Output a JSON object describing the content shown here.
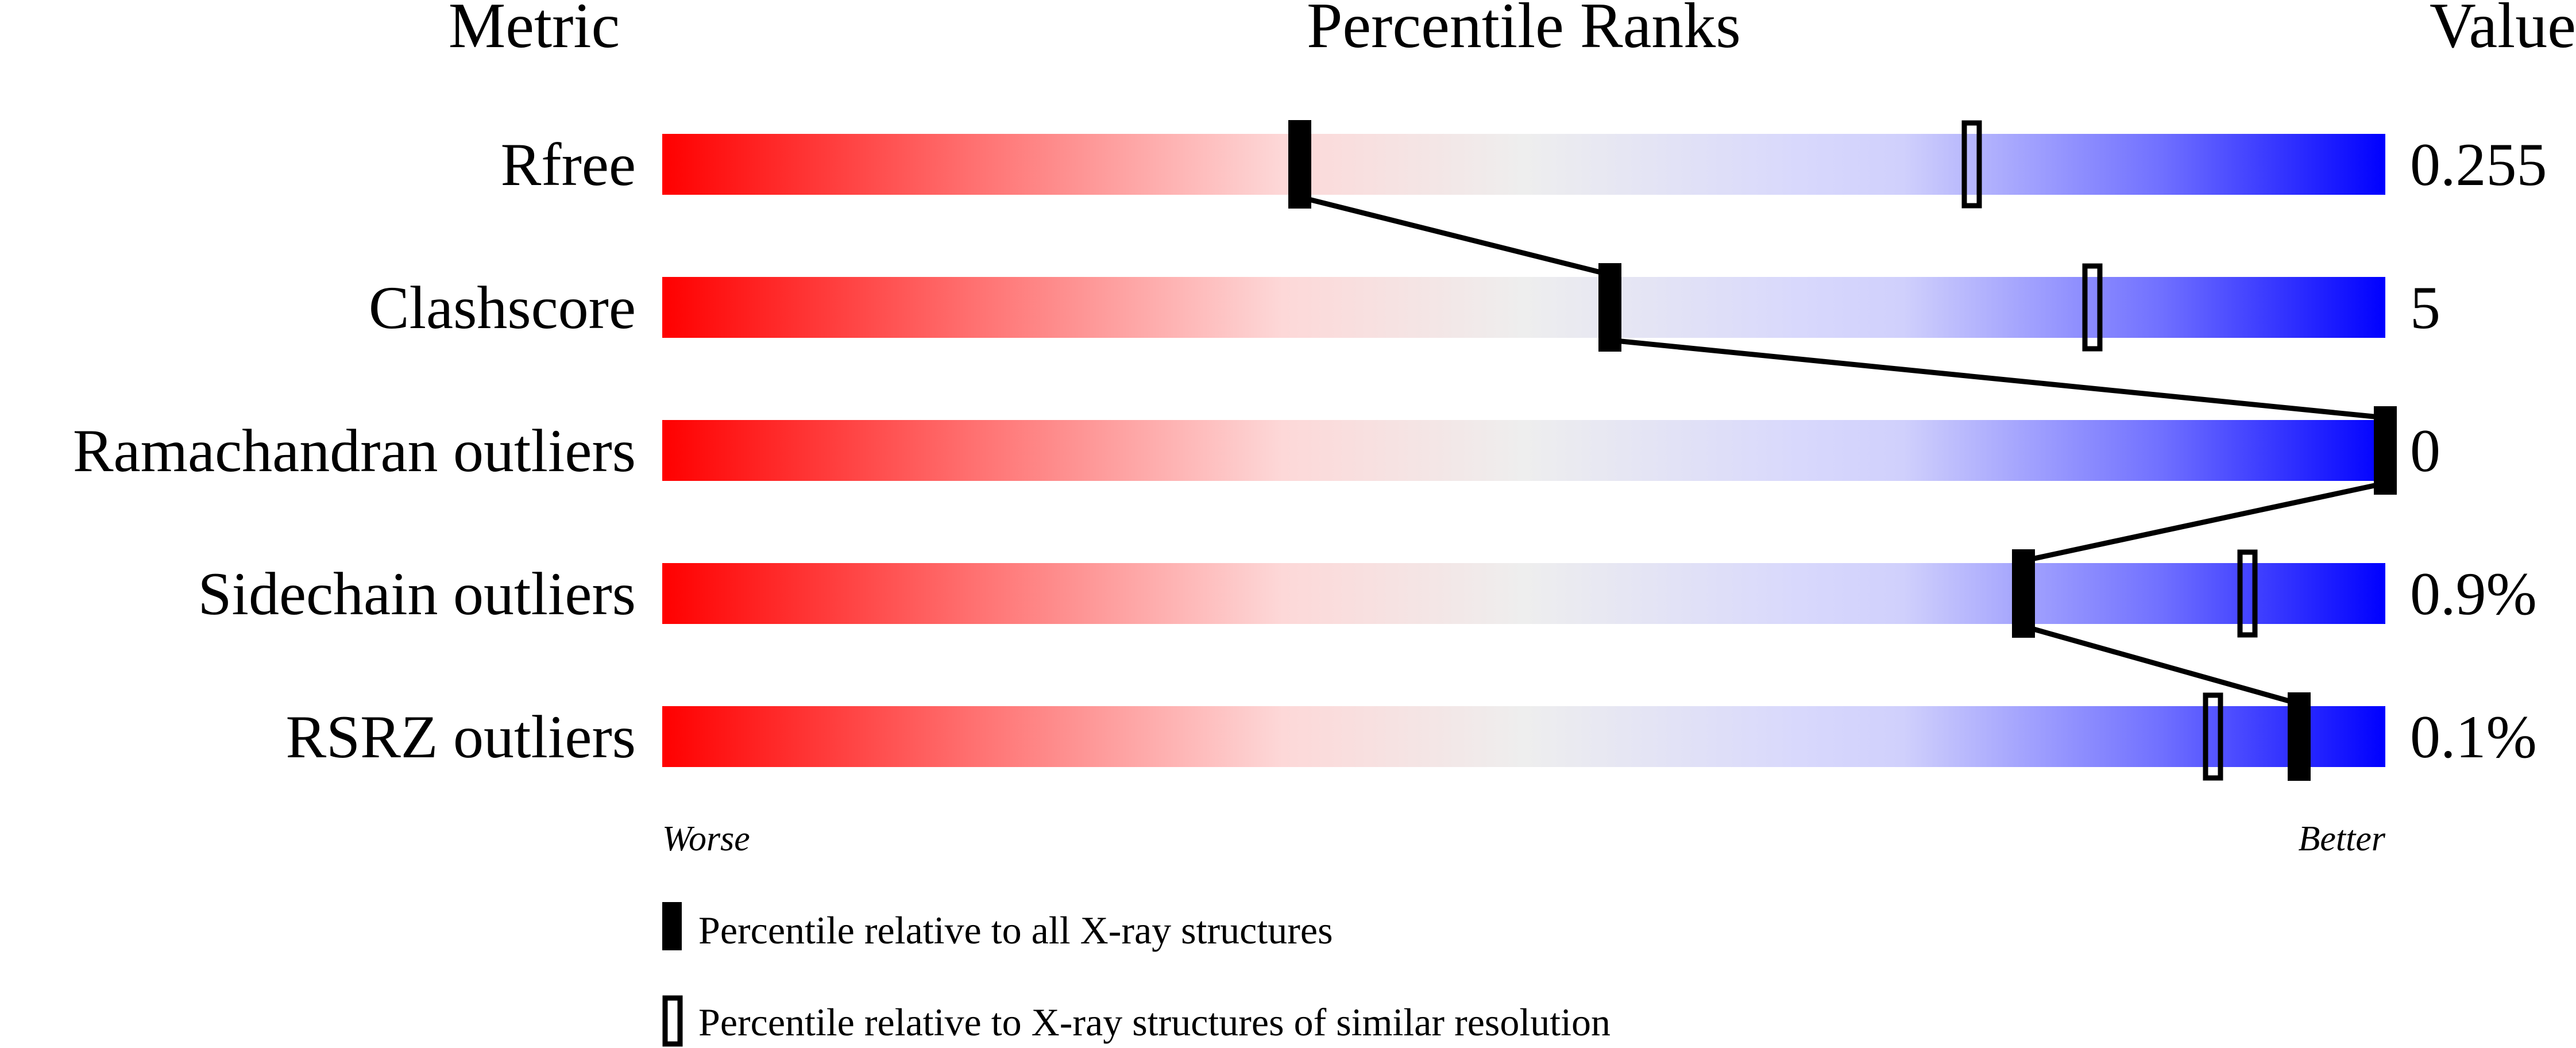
{
  "chart_data": {
    "type": "percentile-slider",
    "headers": {
      "metric": "Metric",
      "ranks": "Percentile Ranks",
      "value": "Value"
    },
    "xlim": [
      0,
      100
    ],
    "metrics": [
      {
        "name": "Rfree",
        "value": "0.255",
        "percentile_all": 37,
        "percentile_similar": 76
      },
      {
        "name": "Clashscore",
        "value": "5",
        "percentile_all": 55,
        "percentile_similar": 83
      },
      {
        "name": "Ramachandran outliers",
        "value": "0",
        "percentile_all": 100,
        "percentile_similar": null
      },
      {
        "name": "Sidechain outliers",
        "value": "0.9%",
        "percentile_all": 79,
        "percentile_similar": 92
      },
      {
        "name": "RSRZ outliers",
        "value": "0.1%",
        "percentile_all": 95,
        "percentile_similar": 90
      }
    ],
    "axis_labels": {
      "worse": "Worse",
      "better": "Better"
    },
    "legend": {
      "all": "Percentile relative to all X-ray structures",
      "similar": "Percentile relative to X-ray structures of similar resolution"
    },
    "colors": {
      "worse": "#ff0000",
      "middle": "#eeeeee",
      "better": "#0000ff"
    }
  }
}
